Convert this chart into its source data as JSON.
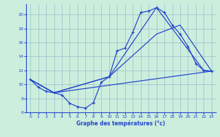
{
  "xlabel": "Graphe des températures (°c)",
  "background_color": "#cceedd",
  "grid_color": "#99bbcc",
  "line_color": "#2244cc",
  "xlim": [
    -0.5,
    23.5
  ],
  "ylim": [
    6,
    21.5
  ],
  "yticks": [
    6,
    8,
    10,
    12,
    14,
    16,
    18,
    20
  ],
  "xticks": [
    0,
    1,
    2,
    3,
    4,
    5,
    6,
    7,
    8,
    9,
    10,
    11,
    12,
    13,
    14,
    15,
    16,
    17,
    18,
    19,
    20,
    21,
    22,
    23
  ],
  "line1_x": [
    0,
    1,
    2,
    3,
    4,
    5,
    6,
    7,
    8,
    9,
    10,
    11,
    12,
    13,
    14,
    15,
    16,
    17,
    18,
    19,
    20,
    21,
    22,
    23
  ],
  "line1_y": [
    10.7,
    9.6,
    9.0,
    8.8,
    8.5,
    7.3,
    6.8,
    6.6,
    7.4,
    10.3,
    11.1,
    14.8,
    15.2,
    17.5,
    20.3,
    20.5,
    21.0,
    20.3,
    18.5,
    17.2,
    15.4,
    13.0,
    12.0,
    11.9
  ],
  "line2_x": [
    0,
    3,
    23
  ],
  "line2_y": [
    10.7,
    8.8,
    11.9
  ],
  "line3_x": [
    0,
    3,
    10,
    16,
    19,
    23
  ],
  "line3_y": [
    10.7,
    8.8,
    11.1,
    17.2,
    18.5,
    11.9
  ],
  "line4_x": [
    0,
    3,
    10,
    16,
    22,
    23
  ],
  "line4_y": [
    10.7,
    8.8,
    11.1,
    21.0,
    12.0,
    11.9
  ]
}
